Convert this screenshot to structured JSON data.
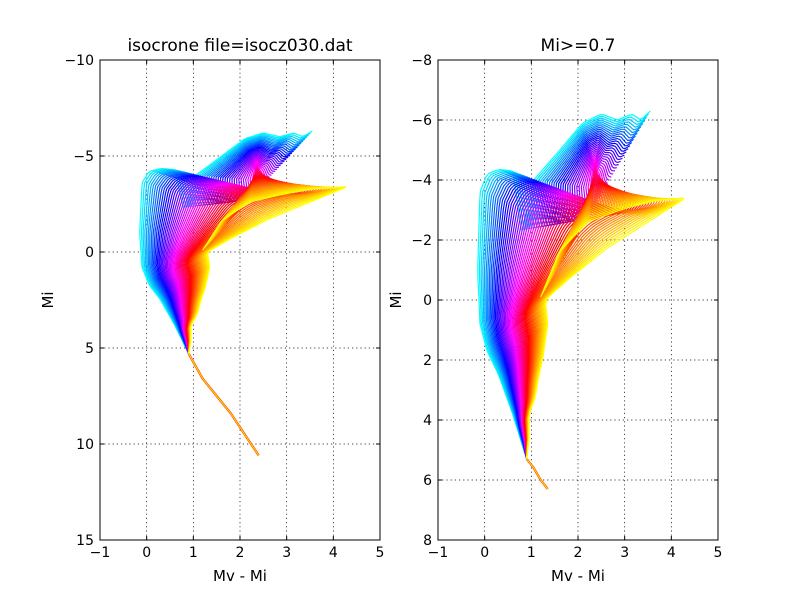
{
  "chart_data": [
    {
      "type": "line",
      "title": "isocrone file=isocz030.dat",
      "xlabel": "Mv - Mi",
      "ylabel": "Mi",
      "xlim": [
        -1,
        5
      ],
      "ylim": [
        15,
        -10
      ],
      "y_inverted": true,
      "xticks": [
        -1,
        0,
        1,
        2,
        3,
        4,
        5
      ],
      "yticks": [
        -10,
        -5,
        0,
        5,
        10,
        15
      ],
      "xtick_labels": [
        "−1",
        "0",
        "1",
        "2",
        "3",
        "4",
        "5"
      ],
      "ytick_labels": [
        "−10",
        "−5",
        "0",
        "5",
        "10",
        "15"
      ],
      "grid": true,
      "colormap": "cyan-blue-magenta-red-orange-yellow",
      "series_count": 60,
      "lower_main_sequence": {
        "x": [
          0.9,
          1.2,
          1.5,
          1.8,
          2.1,
          2.4
        ],
        "y": [
          5.3,
          6.6,
          7.5,
          8.4,
          9.5,
          10.6
        ]
      },
      "isochrone_envelope": {
        "first": {
          "x": [
            0.9,
            0.6,
            0.3,
            0.05,
            -0.1,
            -0.15,
            -0.1,
            0.05,
            0.3,
            0.6,
            0.8,
            1.0,
            1.05,
            1.5,
            2.1,
            2.5,
            2.85,
            3.15,
            3.35,
            3.55
          ],
          "y": [
            5.3,
            3.8,
            2.5,
            1.7,
            0.8,
            -1.0,
            -3.6,
            -4.2,
            -4.35,
            -4.3,
            -2.2,
            -3.5,
            -4.0,
            -4.8,
            -5.9,
            -6.2,
            -6.0,
            -6.2,
            -6.0,
            -6.3
          ]
        },
        "last": {
          "x": [
            0.9,
            0.95,
            0.95,
            1.05,
            1.1,
            1.15,
            1.25,
            1.35,
            1.3,
            1.8,
            2.6,
            3.6,
            4.3,
            3.6,
            2.9,
            2.2,
            1.6,
            1.2
          ],
          "y": [
            5.3,
            4.6,
            3.8,
            3.4,
            3.1,
            2.6,
            1.9,
            0.8,
            0.0,
            -0.7,
            -1.7,
            -2.7,
            -3.4,
            -3.3,
            -3.0,
            -2.6,
            -1.6,
            -0.1
          ]
        }
      }
    },
    {
      "type": "line",
      "title": "Mi>=0.7",
      "xlabel": "Mv - Mi",
      "ylabel": "Mi",
      "xlim": [
        -1,
        5
      ],
      "ylim": [
        8,
        -8
      ],
      "y_inverted": true,
      "xticks": [
        -1,
        0,
        1,
        2,
        3,
        4,
        5
      ],
      "yticks": [
        -8,
        -6,
        -4,
        -2,
        0,
        2,
        4,
        6,
        8
      ],
      "xtick_labels": [
        "−1",
        "0",
        "1",
        "2",
        "3",
        "4",
        "5"
      ],
      "ytick_labels": [
        "−8",
        "−6",
        "−4",
        "−2",
        "0",
        "2",
        "4",
        "6",
        "8"
      ],
      "grid": true,
      "colormap": "cyan-blue-magenta-red-orange-yellow",
      "series_count": 60,
      "lower_main_sequence": {
        "x": [
          0.9,
          1.05,
          1.2,
          1.35
        ],
        "y": [
          5.3,
          5.6,
          6.0,
          6.3
        ]
      },
      "isochrone_envelope": {
        "first": {
          "x": [
            0.9,
            0.6,
            0.3,
            0.05,
            -0.1,
            -0.15,
            -0.1,
            0.05,
            0.3,
            0.6,
            0.8,
            1.0,
            1.05,
            1.5,
            2.1,
            2.5,
            2.85,
            3.15,
            3.35,
            3.55
          ],
          "y": [
            5.3,
            3.8,
            2.5,
            1.7,
            0.8,
            -1.0,
            -3.6,
            -4.2,
            -4.35,
            -4.3,
            -2.2,
            -3.5,
            -4.0,
            -4.8,
            -5.9,
            -6.2,
            -6.0,
            -6.2,
            -6.0,
            -6.3
          ]
        },
        "last": {
          "x": [
            0.9,
            0.95,
            0.95,
            1.05,
            1.1,
            1.15,
            1.25,
            1.35,
            1.3,
            1.8,
            2.6,
            3.6,
            4.3,
            3.6,
            2.9,
            2.2,
            1.6,
            1.2
          ],
          "y": [
            5.3,
            4.6,
            3.8,
            3.4,
            3.1,
            2.6,
            1.9,
            0.8,
            0.0,
            -0.7,
            -1.7,
            -2.7,
            -3.4,
            -3.3,
            -3.0,
            -2.6,
            -1.6,
            -0.1
          ]
        }
      }
    }
  ]
}
